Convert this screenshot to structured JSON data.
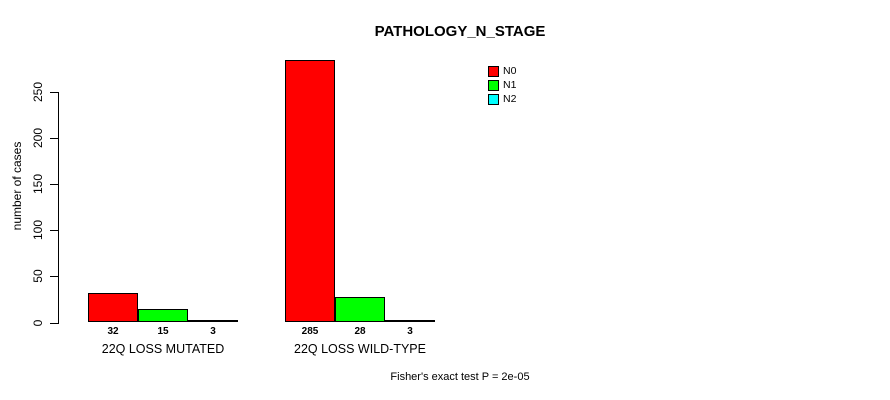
{
  "chart_data": {
    "type": "bar",
    "title": "PATHOLOGY_N_STAGE",
    "ylabel": "number of cases",
    "xlabel": "",
    "ylim": [
      0,
      250
    ],
    "yticks": [
      0,
      50,
      100,
      150,
      200,
      250
    ],
    "grid": false,
    "legend_position": "top-right",
    "categories": [
      "22Q LOSS MUTATED",
      "22Q LOSS WILD-TYPE"
    ],
    "series": [
      {
        "name": "N0",
        "color": "#ff0000",
        "values": [
          32,
          285
        ]
      },
      {
        "name": "N1",
        "color": "#00ff00",
        "values": [
          15,
          28
        ]
      },
      {
        "name": "N2",
        "color": "#00ffff",
        "values": [
          3,
          3
        ]
      }
    ],
    "footnote": "Fisher's exact test P = 2e-05"
  },
  "colors": {
    "background": "#ffffff",
    "text": "#000000",
    "axis": "#000000",
    "bar_border": "#000000",
    "n0": "#ff0000",
    "n1": "#00ff00",
    "n2": "#00ffff"
  }
}
